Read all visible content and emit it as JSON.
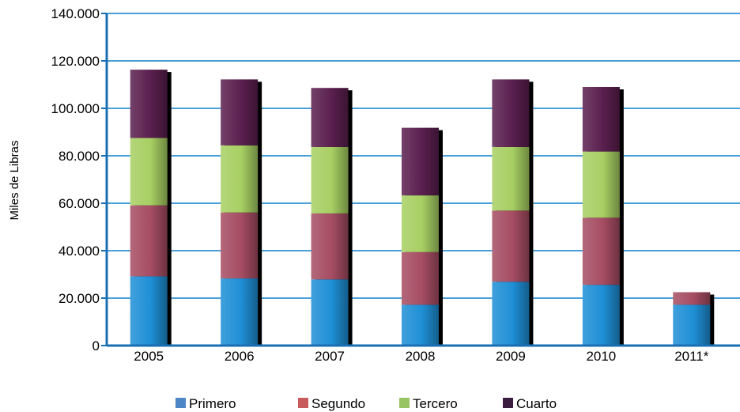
{
  "chart_data": {
    "type": "bar",
    "stacked": true,
    "categories": [
      "2005",
      "2006",
      "2007",
      "2008",
      "2009",
      "2010",
      "2011*"
    ],
    "series": [
      {
        "name": "Primero",
        "values": [
          29200,
          28300,
          27900,
          17200,
          26900,
          25600,
          17200
        ]
      },
      {
        "name": "Segundo",
        "values": [
          29900,
          27800,
          27800,
          22200,
          30000,
          28300,
          5300
        ]
      },
      {
        "name": "Tercero",
        "values": [
          28400,
          28300,
          28000,
          23900,
          26800,
          27900,
          0
        ]
      },
      {
        "name": "Cuarto",
        "values": [
          28800,
          27800,
          24900,
          28500,
          28500,
          27200,
          0
        ]
      }
    ],
    "ylabel": "Miles de Libras",
    "ylim": [
      0,
      140000
    ],
    "yticks": [
      "0",
      "20.000",
      "40.000",
      "60.000",
      "80.000",
      "100.000",
      "120.000",
      "140.000"
    ],
    "grid": true,
    "legend_position": "bottom"
  },
  "colors": {
    "Primero": "#1f8fd6",
    "Segundo": "#a64d63",
    "Tercero": "#a7cf63",
    "Cuarto": "#5a1f4f",
    "axis": "#1a6fb3",
    "grid": "#4a9fd8",
    "shadow": "#000000"
  },
  "legend_colors": {
    "Primero": "#4d86c6",
    "Segundo": "#c85c5c",
    "Tercero": "#99c464",
    "Cuarto": "#3b1d3f"
  }
}
